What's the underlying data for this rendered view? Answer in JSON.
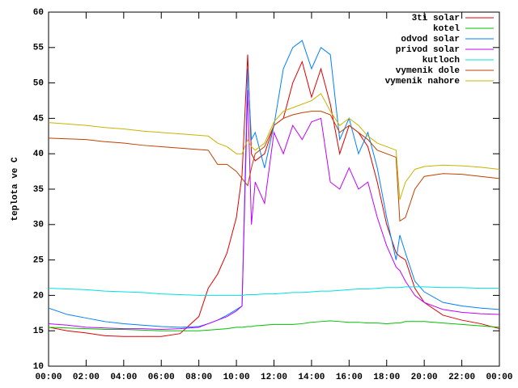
{
  "chart_data": {
    "type": "line",
    "y_label": "teplota ve C",
    "legend": "top-right",
    "x": [
      0,
      1,
      2,
      3,
      4,
      5,
      6,
      7,
      8,
      8.5,
      9,
      9.5,
      10,
      10.3,
      10.6,
      10.8,
      11,
      11.5,
      12,
      12.5,
      13,
      13.5,
      14,
      14.5,
      15,
      15.5,
      16,
      16.5,
      17,
      17.5,
      18,
      18.5,
      18.7,
      19,
      19.5,
      20,
      21,
      22,
      23,
      24
    ],
    "xlim": [
      0,
      24
    ],
    "xticks": [
      {
        "value": 0,
        "label": "00:00"
      },
      {
        "value": 2,
        "label": "02:00"
      },
      {
        "value": 4,
        "label": "04:00"
      },
      {
        "value": 6,
        "label": "06:00"
      },
      {
        "value": 8,
        "label": "08:00"
      },
      {
        "value": 10,
        "label": "10:00"
      },
      {
        "value": 12,
        "label": "12:00"
      },
      {
        "value": 14,
        "label": "14:00"
      },
      {
        "value": 16,
        "label": "16:00"
      },
      {
        "value": 18,
        "label": "18:00"
      },
      {
        "value": 20,
        "label": "20:00"
      },
      {
        "value": 22,
        "label": "22:00"
      },
      {
        "value": 24,
        "label": "00:00"
      }
    ],
    "ylim": [
      10,
      60
    ],
    "yticks": [
      10,
      15,
      20,
      25,
      30,
      35,
      40,
      45,
      50,
      55,
      60
    ],
    "series": [
      {
        "name": "3ti solar",
        "color": "#e00000",
        "values": [
          15.5,
          15,
          14.7,
          14.3,
          14.2,
          14.2,
          14.2,
          14.6,
          17,
          21,
          23,
          26,
          31,
          37,
          54,
          40,
          39,
          40,
          44,
          45,
          50,
          53,
          48,
          52,
          47,
          40,
          44,
          43,
          41,
          36,
          30,
          26,
          25.5,
          25,
          21,
          19,
          17.2,
          16.5,
          16,
          15.3
        ]
      },
      {
        "name": "kotel",
        "color": "#00c000",
        "values": [
          15.5,
          15.4,
          15.3,
          15.2,
          15.2,
          15.1,
          15,
          15,
          15,
          15.1,
          15.2,
          15.3,
          15.5,
          15.5,
          15.6,
          15.6,
          15.7,
          15.8,
          15.9,
          15.9,
          15.9,
          16,
          16.2,
          16.3,
          16.4,
          16.3,
          16.2,
          16.2,
          16.1,
          16.1,
          16,
          16.1,
          16.1,
          16.3,
          16.3,
          16.3,
          16.1,
          15.9,
          15.7,
          15.5
        ]
      },
      {
        "name": "odvod solar",
        "color": "#0080ff",
        "values": [
          18.2,
          17.3,
          16.8,
          16.3,
          16,
          15.8,
          15.6,
          15.5,
          15.6,
          16,
          16.5,
          17.2,
          18,
          18.5,
          52,
          42,
          43,
          38,
          44,
          52,
          55,
          56,
          52,
          55,
          54,
          42,
          45,
          40,
          43,
          38,
          31,
          25,
          28.5,
          26,
          22,
          20.5,
          19,
          18.5,
          18.2,
          18
        ]
      },
      {
        "name": "privod solar",
        "color": "#c000ff",
        "values": [
          16,
          15.8,
          15.5,
          15.4,
          15.3,
          15.3,
          15.2,
          15.3,
          15.5,
          16,
          16.5,
          17,
          17.8,
          18.5,
          49,
          30,
          36,
          33,
          43,
          40,
          44,
          42,
          44.5,
          45,
          36,
          35,
          38,
          35,
          36,
          31,
          27,
          24,
          23.5,
          22,
          20,
          19,
          18,
          17.6,
          17.4,
          17.3
        ]
      },
      {
        "name": "kutloch",
        "color": "#00e0e0",
        "values": [
          21,
          20.9,
          20.8,
          20.6,
          20.5,
          20.4,
          20.2,
          20.1,
          20,
          20,
          20,
          20,
          20,
          20,
          20.1,
          20.1,
          20.1,
          20.2,
          20.2,
          20.3,
          20.4,
          20.4,
          20.5,
          20.6,
          20.6,
          20.7,
          20.8,
          20.9,
          20.9,
          21,
          21.1,
          21.1,
          21.1,
          21.2,
          21.2,
          21.2,
          21.1,
          21.1,
          21,
          21
        ]
      },
      {
        "name": "vymenik dole",
        "color": "#c04000",
        "values": [
          42.2,
          42.1,
          42,
          41.7,
          41.5,
          41.2,
          41,
          40.8,
          40.6,
          40.5,
          38.5,
          38.5,
          37.5,
          36.5,
          35.5,
          38,
          40,
          41,
          44,
          45,
          45.5,
          45.8,
          46,
          46,
          45.5,
          43,
          44,
          43,
          42,
          40.5,
          40,
          39.5,
          30.5,
          31,
          35,
          36.8,
          37.2,
          37.1,
          36.8,
          36.5
        ]
      },
      {
        "name": "vymenik nahore",
        "color": "#c8b400",
        "values": [
          44.4,
          44.2,
          44,
          43.7,
          43.5,
          43.2,
          43,
          42.8,
          42.6,
          42.5,
          41.5,
          41,
          40,
          40,
          42,
          41,
          40.5,
          41.5,
          44.5,
          46,
          46.5,
          47,
          47.5,
          48.5,
          46,
          44,
          45,
          44,
          42.5,
          41.5,
          41,
          40.5,
          33.5,
          36,
          37.8,
          38.2,
          38.4,
          38.3,
          38.1,
          37.8
        ]
      }
    ]
  }
}
